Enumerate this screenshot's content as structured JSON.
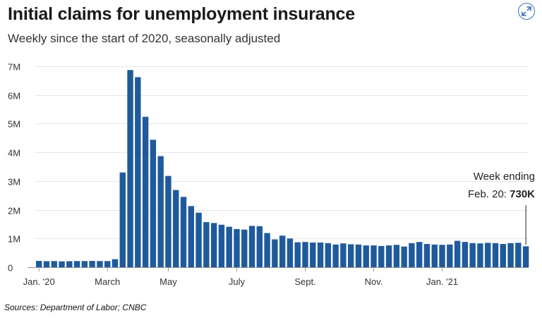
{
  "header": {
    "title": "Initial claims for unemployment insurance",
    "subtitle": "Weekly since the start of 2020, seasonally adjusted"
  },
  "footer": {
    "source": "Sources:  Department of Labor; CNBC"
  },
  "icons": {
    "expand": "expand-arrows-icon"
  },
  "colors": {
    "bar": "#1f5a9c",
    "grid": "#e6e6e6",
    "axis": "#9a9a9a",
    "accent": "#3a6fb4"
  },
  "chart_data": {
    "type": "bar",
    "title": "Initial claims for unemployment insurance",
    "subtitle": "Weekly since the start of 2020, seasonally adjusted",
    "xlabel": "",
    "ylabel": "",
    "ylim": [
      0,
      7000000
    ],
    "yticks": [
      {
        "value": 0,
        "label": "0"
      },
      {
        "value": 1000000,
        "label": "1M"
      },
      {
        "value": 2000000,
        "label": "2M"
      },
      {
        "value": 3000000,
        "label": "3M"
      },
      {
        "value": 4000000,
        "label": "4M"
      },
      {
        "value": 5000000,
        "label": "5M"
      },
      {
        "value": 6000000,
        "label": "6M"
      },
      {
        "value": 7000000,
        "label": "7M"
      }
    ],
    "xticks": [
      {
        "label": "Jan. '20",
        "index": 0
      },
      {
        "label": "March",
        "index": 9
      },
      {
        "label": "May",
        "index": 17
      },
      {
        "label": "July",
        "index": 26
      },
      {
        "label": "Sept.",
        "index": 35
      },
      {
        "label": "Nov.",
        "index": 44
      },
      {
        "label": "Jan. '21",
        "index": 53
      }
    ],
    "grid": true,
    "legend": "none",
    "values": [
      220000,
      210000,
      215000,
      205000,
      210000,
      215000,
      215000,
      220000,
      215000,
      215000,
      280000,
      3300000,
      6870000,
      6620000,
      5240000,
      4440000,
      3870000,
      3180000,
      2690000,
      2450000,
      2130000,
      1900000,
      1570000,
      1540000,
      1480000,
      1410000,
      1330000,
      1310000,
      1440000,
      1430000,
      1190000,
      970000,
      1100000,
      1000000,
      870000,
      880000,
      860000,
      860000,
      840000,
      790000,
      830000,
      800000,
      790000,
      760000,
      760000,
      740000,
      760000,
      780000,
      720000,
      840000,
      880000,
      810000,
      790000,
      780000,
      790000,
      920000,
      880000,
      840000,
      830000,
      850000,
      840000,
      810000,
      840000,
      850000,
      730000
    ],
    "annotation": {
      "line1": "Week ending",
      "line2_prefix": "Feb. 20: ",
      "line2_value": "730K",
      "bar_index": 64
    }
  }
}
